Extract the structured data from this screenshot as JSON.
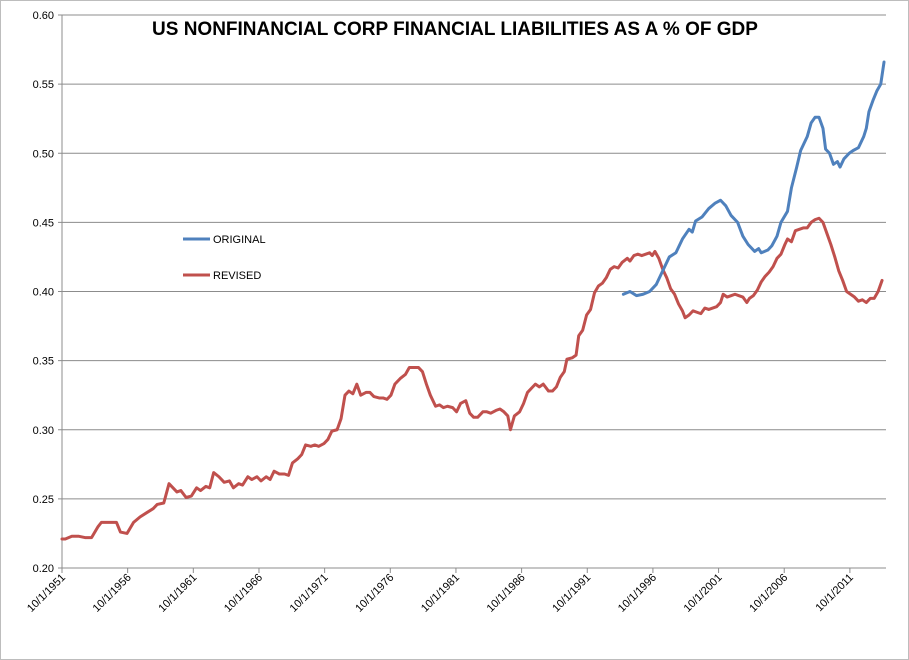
{
  "chart_data": {
    "type": "line",
    "title": "US NONFINANCIAL CORP  FINANCIAL LIABILITIES AS A % OF GDP",
    "xlabel": "",
    "ylabel": "",
    "ylim": [
      0.2,
      0.6
    ],
    "yticks": [
      "0.20",
      "0.25",
      "0.30",
      "0.35",
      "0.40",
      "0.45",
      "0.50",
      "0.55",
      "0.60"
    ],
    "xlim": [
      1951.75,
      2014.5
    ],
    "xticks": [
      {
        "label": "10/1/1951",
        "x": 1951.75
      },
      {
        "label": "10/1/1956",
        "x": 1956.75
      },
      {
        "label": "10/1/1961",
        "x": 1961.75
      },
      {
        "label": "10/1/1966",
        "x": 1966.75
      },
      {
        "label": "10/1/1971",
        "x": 1971.75
      },
      {
        "label": "10/1/1976",
        "x": 1976.75
      },
      {
        "label": "10/1/1981",
        "x": 1981.75
      },
      {
        "label": "10/1/1986",
        "x": 1986.75
      },
      {
        "label": "10/1/1991",
        "x": 1991.75
      },
      {
        "label": "10/1/1996",
        "x": 1996.75
      },
      {
        "label": "10/1/2001",
        "x": 2001.75
      },
      {
        "label": "10/1/2006",
        "x": 2006.75
      },
      {
        "label": "10/1/2011",
        "x": 2011.75
      }
    ],
    "legend_position": "left-middle",
    "series": [
      {
        "name": "ORIGINAL",
        "color": "#4f81bd",
        "points": [
          [
            1994.5,
            0.398
          ],
          [
            1995.0,
            0.4
          ],
          [
            1995.5,
            0.397
          ],
          [
            1996.0,
            0.398
          ],
          [
            1996.5,
            0.4
          ],
          [
            1997.0,
            0.405
          ],
          [
            1997.5,
            0.415
          ],
          [
            1998.0,
            0.425
          ],
          [
            1998.5,
            0.428
          ],
          [
            1999.0,
            0.438
          ],
          [
            1999.5,
            0.445
          ],
          [
            1999.75,
            0.443
          ],
          [
            2000.0,
            0.451
          ],
          [
            2000.5,
            0.454
          ],
          [
            2001.0,
            0.46
          ],
          [
            2001.5,
            0.464
          ],
          [
            2001.9,
            0.466
          ],
          [
            2002.3,
            0.462
          ],
          [
            2002.7,
            0.455
          ],
          [
            2003.2,
            0.45
          ],
          [
            2003.6,
            0.44
          ],
          [
            2004.0,
            0.434
          ],
          [
            2004.5,
            0.429
          ],
          [
            2004.8,
            0.431
          ],
          [
            2005.0,
            0.428
          ],
          [
            2005.5,
            0.43
          ],
          [
            2005.8,
            0.433
          ],
          [
            2006.2,
            0.44
          ],
          [
            2006.5,
            0.45
          ],
          [
            2007.0,
            0.458
          ],
          [
            2007.3,
            0.475
          ],
          [
            2007.7,
            0.49
          ],
          [
            2008.0,
            0.502
          ],
          [
            2008.5,
            0.512
          ],
          [
            2008.8,
            0.522
          ],
          [
            2009.1,
            0.526
          ],
          [
            2009.4,
            0.526
          ],
          [
            2009.7,
            0.518
          ],
          [
            2009.9,
            0.503
          ],
          [
            2010.2,
            0.5
          ],
          [
            2010.5,
            0.492
          ],
          [
            2010.8,
            0.494
          ],
          [
            2011.0,
            0.49
          ],
          [
            2011.3,
            0.496
          ],
          [
            2011.7,
            0.5
          ],
          [
            2012.0,
            0.502
          ],
          [
            2012.4,
            0.504
          ],
          [
            2012.8,
            0.512
          ],
          [
            2013.0,
            0.518
          ],
          [
            2013.2,
            0.53
          ],
          [
            2013.5,
            0.538
          ],
          [
            2013.8,
            0.545
          ],
          [
            2014.1,
            0.55
          ],
          [
            2014.35,
            0.566
          ]
        ]
      },
      {
        "name": "REVISED",
        "color": "#c0504d",
        "points": [
          [
            1951.75,
            0.221
          ],
          [
            1952.0,
            0.221
          ],
          [
            1952.5,
            0.223
          ],
          [
            1953.0,
            0.223
          ],
          [
            1953.5,
            0.222
          ],
          [
            1954.0,
            0.222
          ],
          [
            1954.5,
            0.23
          ],
          [
            1954.75,
            0.233
          ],
          [
            1955.0,
            0.233
          ],
          [
            1955.5,
            0.233
          ],
          [
            1955.9,
            0.233
          ],
          [
            1956.2,
            0.226
          ],
          [
            1956.7,
            0.225
          ],
          [
            1957.2,
            0.233
          ],
          [
            1957.7,
            0.237
          ],
          [
            1958.2,
            0.24
          ],
          [
            1958.7,
            0.243
          ],
          [
            1959.0,
            0.246
          ],
          [
            1959.5,
            0.247
          ],
          [
            1959.9,
            0.261
          ],
          [
            1960.2,
            0.258
          ],
          [
            1960.5,
            0.255
          ],
          [
            1960.8,
            0.256
          ],
          [
            1961.2,
            0.251
          ],
          [
            1961.6,
            0.252
          ],
          [
            1962.0,
            0.258
          ],
          [
            1962.3,
            0.256
          ],
          [
            1962.7,
            0.259
          ],
          [
            1963.0,
            0.258
          ],
          [
            1963.3,
            0.269
          ],
          [
            1963.7,
            0.266
          ],
          [
            1964.1,
            0.262
          ],
          [
            1964.5,
            0.263
          ],
          [
            1964.8,
            0.258
          ],
          [
            1965.2,
            0.261
          ],
          [
            1965.5,
            0.26
          ],
          [
            1965.9,
            0.266
          ],
          [
            1966.2,
            0.264
          ],
          [
            1966.6,
            0.266
          ],
          [
            1966.9,
            0.263
          ],
          [
            1967.3,
            0.266
          ],
          [
            1967.6,
            0.264
          ],
          [
            1967.9,
            0.27
          ],
          [
            1968.3,
            0.268
          ],
          [
            1968.7,
            0.268
          ],
          [
            1969.0,
            0.267
          ],
          [
            1969.3,
            0.276
          ],
          [
            1969.7,
            0.279
          ],
          [
            1970.0,
            0.282
          ],
          [
            1970.3,
            0.289
          ],
          [
            1970.7,
            0.288
          ],
          [
            1971.0,
            0.289
          ],
          [
            1971.3,
            0.288
          ],
          [
            1971.7,
            0.29
          ],
          [
            1972.0,
            0.293
          ],
          [
            1972.3,
            0.299
          ],
          [
            1972.7,
            0.3
          ],
          [
            1973.0,
            0.308
          ],
          [
            1973.3,
            0.325
          ],
          [
            1973.6,
            0.328
          ],
          [
            1973.9,
            0.326
          ],
          [
            1974.2,
            0.333
          ],
          [
            1974.5,
            0.325
          ],
          [
            1974.9,
            0.327
          ],
          [
            1975.2,
            0.327
          ],
          [
            1975.5,
            0.324
          ],
          [
            1975.9,
            0.323
          ],
          [
            1976.2,
            0.323
          ],
          [
            1976.5,
            0.322
          ],
          [
            1976.8,
            0.325
          ],
          [
            1977.1,
            0.333
          ],
          [
            1977.5,
            0.337
          ],
          [
            1977.9,
            0.34
          ],
          [
            1978.2,
            0.345
          ],
          [
            1978.5,
            0.345
          ],
          [
            1978.9,
            0.345
          ],
          [
            1979.2,
            0.342
          ],
          [
            1979.5,
            0.333
          ],
          [
            1979.8,
            0.325
          ],
          [
            1980.2,
            0.317
          ],
          [
            1980.5,
            0.318
          ],
          [
            1980.8,
            0.316
          ],
          [
            1981.1,
            0.317
          ],
          [
            1981.5,
            0.316
          ],
          [
            1981.8,
            0.313
          ],
          [
            1982.1,
            0.319
          ],
          [
            1982.5,
            0.321
          ],
          [
            1982.8,
            0.312
          ],
          [
            1983.1,
            0.309
          ],
          [
            1983.4,
            0.309
          ],
          [
            1983.8,
            0.313
          ],
          [
            1984.1,
            0.313
          ],
          [
            1984.4,
            0.312
          ],
          [
            1984.8,
            0.314
          ],
          [
            1985.1,
            0.315
          ],
          [
            1985.4,
            0.313
          ],
          [
            1985.7,
            0.31
          ],
          [
            1985.9,
            0.3
          ],
          [
            1986.2,
            0.31
          ],
          [
            1986.6,
            0.313
          ],
          [
            1986.9,
            0.319
          ],
          [
            1987.2,
            0.327
          ],
          [
            1987.5,
            0.33
          ],
          [
            1987.8,
            0.333
          ],
          [
            1988.1,
            0.331
          ],
          [
            1988.4,
            0.333
          ],
          [
            1988.8,
            0.328
          ],
          [
            1989.1,
            0.328
          ],
          [
            1989.4,
            0.331
          ],
          [
            1989.7,
            0.338
          ],
          [
            1990.0,
            0.342
          ],
          [
            1990.2,
            0.351
          ],
          [
            1990.6,
            0.352
          ],
          [
            1990.9,
            0.354
          ],
          [
            1991.1,
            0.368
          ],
          [
            1991.4,
            0.372
          ],
          [
            1991.7,
            0.383
          ],
          [
            1992.0,
            0.387
          ],
          [
            1992.3,
            0.399
          ],
          [
            1992.6,
            0.404
          ],
          [
            1992.9,
            0.406
          ],
          [
            1993.2,
            0.41
          ],
          [
            1993.5,
            0.416
          ],
          [
            1993.8,
            0.418
          ],
          [
            1994.1,
            0.417
          ],
          [
            1994.4,
            0.421
          ],
          [
            1994.8,
            0.424
          ],
          [
            1995.0,
            0.422
          ],
          [
            1995.3,
            0.426
          ],
          [
            1995.6,
            0.427
          ],
          [
            1995.9,
            0.426
          ],
          [
            1996.2,
            0.427
          ],
          [
            1996.5,
            0.428
          ],
          [
            1996.7,
            0.426
          ],
          [
            1996.9,
            0.429
          ],
          [
            1997.2,
            0.424
          ],
          [
            1997.5,
            0.416
          ],
          [
            1997.8,
            0.41
          ],
          [
            1998.1,
            0.402
          ],
          [
            1998.4,
            0.398
          ],
          [
            1998.7,
            0.391
          ],
          [
            1999.0,
            0.386
          ],
          [
            1999.2,
            0.381
          ],
          [
            1999.5,
            0.383
          ],
          [
            1999.8,
            0.386
          ],
          [
            2000.1,
            0.385
          ],
          [
            2000.4,
            0.384
          ],
          [
            2000.7,
            0.388
          ],
          [
            2001.0,
            0.387
          ],
          [
            2001.3,
            0.388
          ],
          [
            2001.6,
            0.389
          ],
          [
            2001.9,
            0.392
          ],
          [
            2002.1,
            0.398
          ],
          [
            2002.4,
            0.396
          ],
          [
            2002.7,
            0.397
          ],
          [
            2003.0,
            0.398
          ],
          [
            2003.3,
            0.397
          ],
          [
            2003.6,
            0.396
          ],
          [
            2003.9,
            0.392
          ],
          [
            2004.1,
            0.395
          ],
          [
            2004.4,
            0.397
          ],
          [
            2004.7,
            0.401
          ],
          [
            2005.0,
            0.407
          ],
          [
            2005.3,
            0.411
          ],
          [
            2005.6,
            0.414
          ],
          [
            2005.9,
            0.418
          ],
          [
            2006.2,
            0.424
          ],
          [
            2006.5,
            0.427
          ],
          [
            2006.8,
            0.434
          ],
          [
            2007.0,
            0.438
          ],
          [
            2007.3,
            0.436
          ],
          [
            2007.6,
            0.444
          ],
          [
            2007.9,
            0.445
          ],
          [
            2008.2,
            0.446
          ],
          [
            2008.5,
            0.446
          ],
          [
            2008.8,
            0.45
          ],
          [
            2009.1,
            0.452
          ],
          [
            2009.4,
            0.453
          ],
          [
            2009.7,
            0.45
          ],
          [
            2010.0,
            0.442
          ],
          [
            2010.3,
            0.434
          ],
          [
            2010.6,
            0.425
          ],
          [
            2010.9,
            0.415
          ],
          [
            2011.2,
            0.408
          ],
          [
            2011.5,
            0.4
          ],
          [
            2011.8,
            0.398
          ],
          [
            2012.1,
            0.396
          ],
          [
            2012.4,
            0.393
          ],
          [
            2012.7,
            0.394
          ],
          [
            2013.0,
            0.392
          ],
          [
            2013.3,
            0.395
          ],
          [
            2013.6,
            0.395
          ],
          [
            2013.9,
            0.4
          ],
          [
            2014.2,
            0.408
          ]
        ]
      }
    ]
  }
}
